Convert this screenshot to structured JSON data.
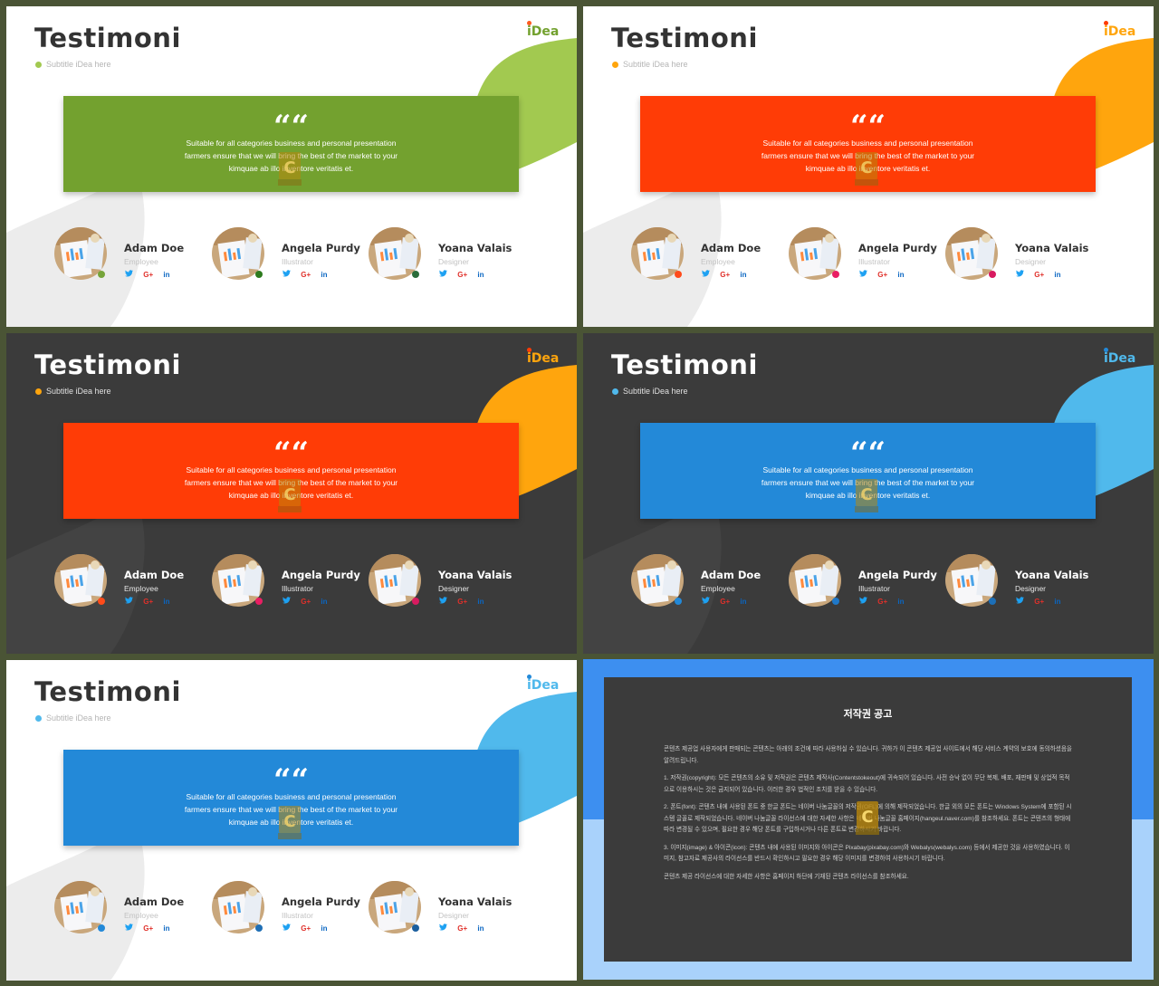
{
  "slides": [
    {
      "theme": "light",
      "accent": "#73a12f",
      "blob": "#a2c950",
      "logo_dot": "#ff5a1f",
      "title": "Testimoni",
      "subtitle": "Subtitle iDea here",
      "logo": "iDea",
      "quote_mark": "““",
      "quote": [
        "Suitable for all categories business and personal presentation",
        "farmers ensure that we will bring the best of the market to your",
        "kimquae ab illo inventore veritatis et."
      ],
      "people": [
        {
          "name": "Adam Doe",
          "role": "Employee",
          "dot": "#76a43a"
        },
        {
          "name": "Angela Purdy",
          "role": "Illustrator",
          "dot": "#2d7b1e"
        },
        {
          "name": "Yoana Valais",
          "role": "Designer",
          "dot": "#2a6d3a"
        }
      ],
      "socials": [
        "♥",
        "G+",
        "in"
      ]
    },
    {
      "theme": "light",
      "accent": "#ff3c06",
      "blob": "#ffa50d",
      "logo_dot": "#ff3c06",
      "title": "Testimoni",
      "subtitle": "Subtitle iDea here",
      "logo": "iDea",
      "quote_mark": "““",
      "quote": [
        "Suitable for all categories business and personal presentation",
        "farmers ensure that we will bring the best of the market to your",
        "kimquae ab illo inventore veritatis et."
      ],
      "people": [
        {
          "name": "Adam Doe",
          "role": "Employee",
          "dot": "#ff4b1a"
        },
        {
          "name": "Angela Purdy",
          "role": "Illustrator",
          "dot": "#e91e63"
        },
        {
          "name": "Yoana Valais",
          "role": "Designer",
          "dot": "#d81b60"
        }
      ],
      "socials": [
        "♥",
        "G+",
        "in"
      ]
    },
    {
      "theme": "dark",
      "accent": "#ff3c06",
      "blob": "#ffa50d",
      "logo_dot": "#ff3c06",
      "title": "Testimoni",
      "subtitle": "Subtitle iDea here",
      "logo": "iDea",
      "quote_mark": "““",
      "quote": [
        "Suitable for all categories business and personal presentation",
        "farmers ensure that we will bring the best of the market to your",
        "kimquae ab illo inventore veritatis et."
      ],
      "people": [
        {
          "name": "Adam Doe",
          "role": "Employee",
          "dot": "#ff4b1a"
        },
        {
          "name": "Angela Purdy",
          "role": "Illustrator",
          "dot": "#e91e63"
        },
        {
          "name": "Yoana Valais",
          "role": "Designer",
          "dot": "#d81b60"
        }
      ],
      "socials": [
        "♥",
        "G+",
        "in"
      ]
    },
    {
      "theme": "dark",
      "accent": "#2389d8",
      "blob": "#50b9ec",
      "logo_dot": "#2389d8",
      "title": "Testimoni",
      "subtitle": "Subtitle iDea here",
      "logo": "iDea",
      "quote_mark": "““",
      "quote": [
        "Suitable for all categories business and personal presentation",
        "farmers ensure that we will bring the best of the market to your",
        "kimquae ab illo inventore veritatis et."
      ],
      "people": [
        {
          "name": "Adam Doe",
          "role": "Employee",
          "dot": "#2389d8"
        },
        {
          "name": "Angela Purdy",
          "role": "Illustrator",
          "dot": "#1f78c8"
        },
        {
          "name": "Yoana Valais",
          "role": "Designer",
          "dot": "#1c6fb8"
        }
      ],
      "socials": [
        "♥",
        "G+",
        "in"
      ]
    },
    {
      "theme": "light",
      "accent": "#2389d8",
      "blob": "#50b9ec",
      "logo_dot": "#2389d8",
      "title": "Testimoni",
      "subtitle": "Subtitle iDea here",
      "logo": "iDea",
      "quote_mark": "““",
      "quote": [
        "Suitable for all categories business and personal presentation",
        "farmers ensure that we will bring the best of the market to your",
        "kimquae ab illo inventore veritatis et."
      ],
      "people": [
        {
          "name": "Adam Doe",
          "role": "Employee",
          "dot": "#2389d8"
        },
        {
          "name": "Angela Purdy",
          "role": "Illustrator",
          "dot": "#1f6fb5"
        },
        {
          "name": "Yoana Valais",
          "role": "Designer",
          "dot": "#1c5f9e"
        }
      ],
      "socials": [
        "♥",
        "G+",
        "in"
      ]
    }
  ],
  "notice": {
    "title": "저작권 공고",
    "paragraphs": [
      "콘텐츠 제공업 사용자에게 판매되는 콘텐츠는 아래의 조건에 따라 사용하실 수 있습니다. 귀하가 이 콘텐츠 제공업 사이트에서 해당 서비스 계약의 보호에 동의하셨음을 알려드립니다.",
      "1. 저작권(copyright): 모든 콘텐츠의 소유 및 저작권은 콘텐츠 제작사(Contentstokeout)에 귀속되어 있습니다. 사전 승낙 없이 무단 복제, 배포, 재판매 및 상업적 목적으로 이용하시는 것은 금지되어 있습니다. 이러한 경우 법적인 조치를 받을 수 있습니다.",
      "2. 폰트(font): 콘텐츠 내에 사용된 폰트 중 한글 폰트는 네이버 나눔글꼴의 저작권(OFL)에 의해 제작되었습니다. 한글 외의 모든 폰트는 Windows System에 포함된 시스템 글꼴로 제작되었습니다. 네이버 나눔글꼴 라이선스에 대한 자세한 사항은 네이버 나눔글꼴 홈페이지(hangeul.naver.com)를 참조하세요. 폰트는 콘텐츠의 형태에 따라 변경될 수 있으며, 필요한 경우 해당 폰트를 구입하시거나 다른 폰트로 변경하시기 바랍니다.",
      "3. 이미지(image) & 아이콘(icon): 콘텐츠 내에 사용된 이미지와 아이콘은 Pixabay(pixabay.com)와 Webalys(webalys.com) 등에서 제공한 것을 사용하였습니다. 이미지, 참고자료 제공사의 라이선스를 반드시 확인하시고 필요한 경우 해당 이미지를 변경하여 사용하시기 바랍니다.",
      "콘텐츠 제공 라이선스에 대한 자세한 사항은 홈페이지 하단에 기재된 콘텐츠 라이선스를 참조하세요."
    ]
  }
}
